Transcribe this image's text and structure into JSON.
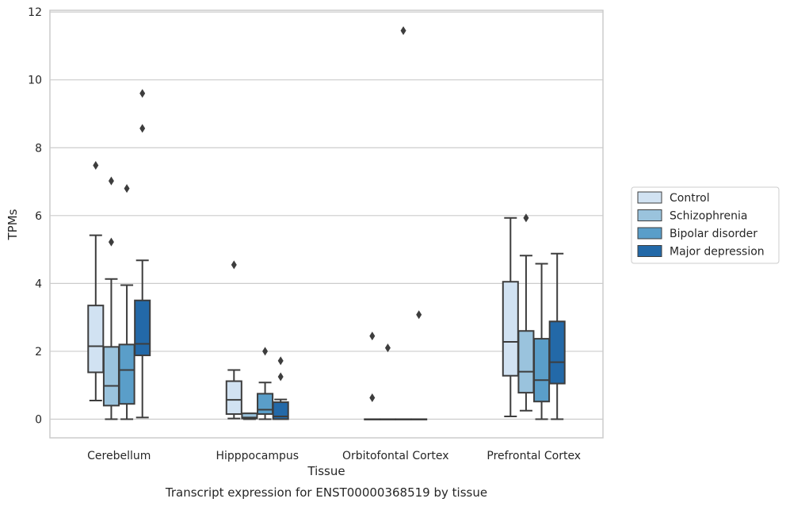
{
  "chart_data": {
    "type": "box",
    "xlabel": "Tissue",
    "ylabel": "TPMs",
    "caption": "Transcript expression for ENST00000368519 by tissue",
    "ylim": [
      -0.55,
      12.05
    ],
    "yticks": [
      0,
      2,
      4,
      6,
      8,
      10,
      12
    ],
    "grid": true,
    "legend_position": "right",
    "categories": [
      "Cerebellum",
      "Hipppocampus",
      "Orbitofontal Cortex",
      "Prefrontal Cortex"
    ],
    "series": [
      {
        "name": "Control",
        "color": "#d1e2f2",
        "boxes": [
          {
            "whisker_low": 0.55,
            "q1": 1.38,
            "median": 2.15,
            "q3": 3.35,
            "whisker_high": 5.42,
            "outliers": [
              7.48
            ]
          },
          {
            "whisker_low": 0.02,
            "q1": 0.15,
            "median": 0.57,
            "q3": 1.12,
            "whisker_high": 1.45,
            "outliers": [
              4.55
            ]
          },
          {
            "whisker_low": 0.0,
            "q1": 0.0,
            "median": 0.0,
            "q3": 0.0,
            "whisker_high": 0.0,
            "outliers": [
              2.45,
              0.63
            ]
          },
          {
            "whisker_low": 0.08,
            "q1": 1.28,
            "median": 2.28,
            "q3": 4.05,
            "whisker_high": 5.93,
            "outliers": []
          }
        ]
      },
      {
        "name": "Schizophrenia",
        "color": "#9ac3dd",
        "boxes": [
          {
            "whisker_low": 0.0,
            "q1": 0.4,
            "median": 0.98,
            "q3": 2.13,
            "whisker_high": 4.13,
            "outliers": [
              7.02,
              5.22
            ]
          },
          {
            "whisker_low": 0.0,
            "q1": 0.02,
            "median": 0.05,
            "q3": 0.17,
            "whisker_high": 0.17,
            "outliers": []
          },
          {
            "whisker_low": 0.0,
            "q1": 0.0,
            "median": 0.0,
            "q3": 0.0,
            "whisker_high": 0.0,
            "outliers": [
              2.1
            ]
          },
          {
            "whisker_low": 0.25,
            "q1": 0.78,
            "median": 1.4,
            "q3": 2.6,
            "whisker_high": 4.82,
            "outliers": [
              5.93
            ]
          }
        ]
      },
      {
        "name": "Bipolar disorder",
        "color": "#5a9ec9",
        "boxes": [
          {
            "whisker_low": 0.0,
            "q1": 0.45,
            "median": 1.45,
            "q3": 2.2,
            "whisker_high": 3.95,
            "outliers": [
              6.8
            ]
          },
          {
            "whisker_low": 0.0,
            "q1": 0.15,
            "median": 0.28,
            "q3": 0.75,
            "whisker_high": 1.08,
            "outliers": [
              2.0
            ]
          },
          {
            "whisker_low": 0.0,
            "q1": 0.0,
            "median": 0.0,
            "q3": 0.0,
            "whisker_high": 0.0,
            "outliers": [
              11.45
            ]
          },
          {
            "whisker_low": 0.0,
            "q1": 0.52,
            "median": 1.15,
            "q3": 2.37,
            "whisker_high": 4.58,
            "outliers": []
          }
        ]
      },
      {
        "name": "Major depression",
        "color": "#2369a8",
        "boxes": [
          {
            "whisker_low": 0.05,
            "q1": 1.88,
            "median": 2.22,
            "q3": 3.5,
            "whisker_high": 4.68,
            "outliers": [
              9.6,
              8.57
            ]
          },
          {
            "whisker_low": 0.0,
            "q1": 0.0,
            "median": 0.08,
            "q3": 0.5,
            "whisker_high": 0.58,
            "outliers": [
              1.72,
              1.25
            ]
          },
          {
            "whisker_low": 0.0,
            "q1": 0.0,
            "median": 0.0,
            "q3": 0.0,
            "whisker_high": 0.0,
            "outliers": [
              3.08
            ]
          },
          {
            "whisker_low": 0.0,
            "q1": 1.05,
            "median": 1.68,
            "q3": 2.88,
            "whisker_high": 4.88,
            "outliers": []
          }
        ]
      }
    ]
  }
}
